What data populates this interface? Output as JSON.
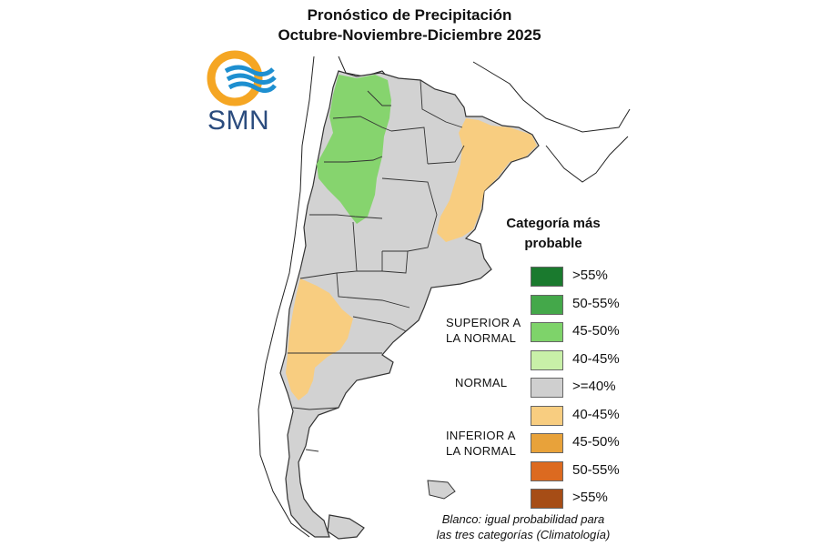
{
  "title": {
    "line1": "Pronóstico de Precipitación",
    "line2": "Octubre-Noviembre-Diciembre 2025"
  },
  "logo": {
    "text": "SMN",
    "colors": {
      "ring": "#f5a623",
      "waves": "#1e8fd0"
    }
  },
  "legend": {
    "title_line1": "Categoría más",
    "title_line2": "probable",
    "items": [
      {
        "label": ">55%",
        "color": "#1a7a2e"
      },
      {
        "label": "50-55%",
        "color": "#44a84a"
      },
      {
        "label": "45-50%",
        "color": "#7ed36a"
      },
      {
        "label": "40-45%",
        "color": "#c8f0a8"
      },
      {
        "label": ">=40%",
        "color": "#cfcfcf"
      },
      {
        "label": "40-45%",
        "color": "#f8cd80"
      },
      {
        "label": "45-50%",
        "color": "#e8a23a"
      },
      {
        "label": "50-55%",
        "color": "#dc6a20"
      },
      {
        "label": ">55%",
        "color": "#a64d16"
      }
    ],
    "groups": {
      "superior_line1": "SUPERIOR A",
      "superior_line2": "LA NORMAL",
      "normal": "NORMAL",
      "inferior_line1": "INFERIOR A",
      "inferior_line2": "LA NORMAL"
    }
  },
  "footnote": {
    "line1": "Blanco: igual probabilidad para",
    "line2": "las tres categorías (Climatología)"
  },
  "map_colors": {
    "normal": "#d2d2d2",
    "above_45_50": "#86d46e",
    "below_40_45": "#f8cd80",
    "border": "#333333"
  }
}
